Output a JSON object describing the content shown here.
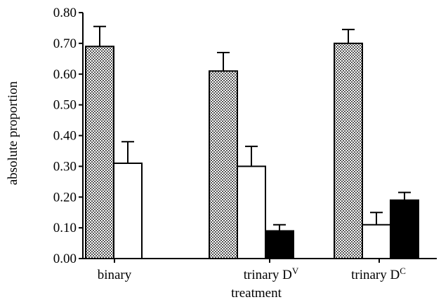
{
  "chart_data": {
    "type": "bar",
    "xlabel": "treatment",
    "ylabel": "absolute proportion",
    "ylim": [
      0,
      0.8
    ],
    "yticks": [
      "0.00",
      "0.10",
      "0.20",
      "0.30",
      "0.40",
      "0.50",
      "0.60",
      "0.70",
      "0.80"
    ],
    "categories": [
      {
        "label": "binary",
        "sup": ""
      },
      {
        "label": "trinary D",
        "sup": "V"
      },
      {
        "label": "trinary D",
        "sup": "C"
      }
    ],
    "series": [
      {
        "fill": "checker",
        "values": [
          0.69,
          0.61,
          0.7
        ],
        "errors": [
          0.065,
          0.06,
          0.045
        ]
      },
      {
        "fill": "#ffffff",
        "values": [
          0.31,
          0.3,
          0.11
        ],
        "errors": [
          0.07,
          0.065,
          0.04
        ]
      },
      {
        "fill": "#000000",
        "values": [
          null,
          0.09,
          0.19
        ],
        "errors": [
          null,
          0.02,
          0.025
        ]
      }
    ]
  }
}
